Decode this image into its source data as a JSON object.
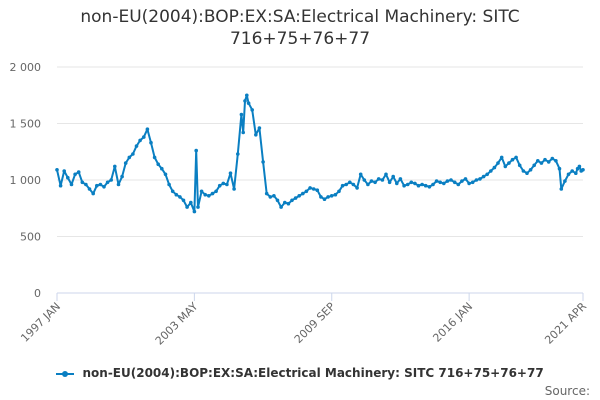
{
  "chart_data": {
    "type": "line",
    "title_lines": [
      "non-EU(2004):BOP:EX:SA:Electrical Machinery: SITC",
      "716+75+76+77"
    ],
    "xlabel": "",
    "ylabel": "",
    "x_tick_labels": [
      "1997 JAN",
      "2003 MAY",
      "2009 SEP",
      "2016 JAN",
      "2021 APR"
    ],
    "y_tick_labels": [
      "0",
      "500",
      "1 000",
      "1 500",
      "2 000"
    ],
    "ylim": [
      0,
      2000
    ],
    "xlim": [
      "1997-01",
      "2021-04"
    ],
    "grid": "horizontal",
    "legend_position": "bottom-center",
    "colors": {
      "series": "#0a7fc2",
      "grid": "#e6e6e6"
    },
    "series": [
      {
        "name": "non-EU(2004):BOP:EX:SA:Electrical Machinery: SITC 716+75+76+77",
        "points": [
          [
            "1997-01",
            1090
          ],
          [
            "1997-03",
            950
          ],
          [
            "1997-05",
            1080
          ],
          [
            "1997-07",
            1020
          ],
          [
            "1997-09",
            960
          ],
          [
            "1997-11",
            1050
          ],
          [
            "1998-01",
            1070
          ],
          [
            "1998-03",
            980
          ],
          [
            "1998-05",
            960
          ],
          [
            "1998-07",
            920
          ],
          [
            "1998-09",
            880
          ],
          [
            "1998-11",
            950
          ],
          [
            "1999-01",
            960
          ],
          [
            "1999-03",
            940
          ],
          [
            "1999-05",
            980
          ],
          [
            "1999-07",
            1000
          ],
          [
            "1999-09",
            1120
          ],
          [
            "1999-11",
            960
          ],
          [
            "2000-01",
            1030
          ],
          [
            "2000-03",
            1150
          ],
          [
            "2000-05",
            1200
          ],
          [
            "2000-07",
            1230
          ],
          [
            "2000-09",
            1300
          ],
          [
            "2000-11",
            1350
          ],
          [
            "2001-01",
            1380
          ],
          [
            "2001-03",
            1450
          ],
          [
            "2001-05",
            1330
          ],
          [
            "2001-07",
            1200
          ],
          [
            "2001-09",
            1140
          ],
          [
            "2001-11",
            1100
          ],
          [
            "2002-01",
            1050
          ],
          [
            "2002-03",
            960
          ],
          [
            "2002-05",
            900
          ],
          [
            "2002-07",
            870
          ],
          [
            "2002-09",
            850
          ],
          [
            "2002-11",
            820
          ],
          [
            "2003-01",
            760
          ],
          [
            "2003-03",
            800
          ],
          [
            "2003-05",
            720
          ],
          [
            "2003-06",
            1260
          ],
          [
            "2003-07",
            760
          ],
          [
            "2003-09",
            900
          ],
          [
            "2003-11",
            870
          ],
          [
            "2004-01",
            860
          ],
          [
            "2004-03",
            880
          ],
          [
            "2004-05",
            900
          ],
          [
            "2004-07",
            950
          ],
          [
            "2004-09",
            970
          ],
          [
            "2004-11",
            960
          ],
          [
            "2005-01",
            1060
          ],
          [
            "2005-03",
            920
          ],
          [
            "2005-05",
            1230
          ],
          [
            "2005-07",
            1580
          ],
          [
            "2005-08",
            1420
          ],
          [
            "2005-09",
            1700
          ],
          [
            "2005-10",
            1750
          ],
          [
            "2005-11",
            1680
          ],
          [
            "2006-01",
            1620
          ],
          [
            "2006-03",
            1400
          ],
          [
            "2006-05",
            1460
          ],
          [
            "2006-07",
            1160
          ],
          [
            "2006-09",
            880
          ],
          [
            "2006-11",
            850
          ],
          [
            "2007-01",
            860
          ],
          [
            "2007-03",
            820
          ],
          [
            "2007-05",
            760
          ],
          [
            "2007-07",
            800
          ],
          [
            "2007-09",
            790
          ],
          [
            "2007-11",
            820
          ],
          [
            "2008-01",
            840
          ],
          [
            "2008-03",
            860
          ],
          [
            "2008-05",
            880
          ],
          [
            "2008-07",
            900
          ],
          [
            "2008-09",
            930
          ],
          [
            "2008-11",
            920
          ],
          [
            "2009-01",
            910
          ],
          [
            "2009-03",
            850
          ],
          [
            "2009-05",
            830
          ],
          [
            "2009-07",
            850
          ],
          [
            "2009-09",
            860
          ],
          [
            "2009-11",
            870
          ],
          [
            "2010-01",
            900
          ],
          [
            "2010-03",
            950
          ],
          [
            "2010-05",
            960
          ],
          [
            "2010-07",
            980
          ],
          [
            "2010-09",
            960
          ],
          [
            "2010-11",
            930
          ],
          [
            "2011-01",
            1050
          ],
          [
            "2011-03",
            1000
          ],
          [
            "2011-05",
            960
          ],
          [
            "2011-07",
            990
          ],
          [
            "2011-09",
            980
          ],
          [
            "2011-11",
            1010
          ],
          [
            "2012-01",
            1000
          ],
          [
            "2012-03",
            1050
          ],
          [
            "2012-05",
            980
          ],
          [
            "2012-07",
            1030
          ],
          [
            "2012-09",
            970
          ],
          [
            "2012-11",
            1010
          ],
          [
            "2013-01",
            950
          ],
          [
            "2013-03",
            960
          ],
          [
            "2013-05",
            980
          ],
          [
            "2013-07",
            970
          ],
          [
            "2013-09",
            950
          ],
          [
            "2013-11",
            960
          ],
          [
            "2014-01",
            950
          ],
          [
            "2014-03",
            940
          ],
          [
            "2014-05",
            960
          ],
          [
            "2014-07",
            990
          ],
          [
            "2014-09",
            980
          ],
          [
            "2014-11",
            970
          ],
          [
            "2015-01",
            990
          ],
          [
            "2015-03",
            1000
          ],
          [
            "2015-05",
            980
          ],
          [
            "2015-07",
            960
          ],
          [
            "2015-09",
            990
          ],
          [
            "2015-11",
            1010
          ],
          [
            "2016-01",
            970
          ],
          [
            "2016-03",
            980
          ],
          [
            "2016-05",
            1000
          ],
          [
            "2016-07",
            1010
          ],
          [
            "2016-09",
            1030
          ],
          [
            "2016-11",
            1050
          ],
          [
            "2017-01",
            1080
          ],
          [
            "2017-03",
            1110
          ],
          [
            "2017-05",
            1150
          ],
          [
            "2017-07",
            1200
          ],
          [
            "2017-09",
            1120
          ],
          [
            "2017-11",
            1150
          ],
          [
            "2018-01",
            1180
          ],
          [
            "2018-03",
            1200
          ],
          [
            "2018-05",
            1130
          ],
          [
            "2018-07",
            1080
          ],
          [
            "2018-09",
            1060
          ],
          [
            "2018-11",
            1090
          ],
          [
            "2019-01",
            1130
          ],
          [
            "2019-03",
            1170
          ],
          [
            "2019-05",
            1150
          ],
          [
            "2019-07",
            1180
          ],
          [
            "2019-09",
            1160
          ],
          [
            "2019-11",
            1190
          ],
          [
            "2020-01",
            1170
          ],
          [
            "2020-03",
            1100
          ],
          [
            "2020-04",
            920
          ],
          [
            "2020-06",
            990
          ],
          [
            "2020-08",
            1050
          ],
          [
            "2020-10",
            1080
          ],
          [
            "2020-12",
            1060
          ],
          [
            "2021-01",
            1100
          ],
          [
            "2021-02",
            1120
          ],
          [
            "2021-03",
            1080
          ],
          [
            "2021-04",
            1090
          ]
        ]
      }
    ]
  },
  "credits": "Source:"
}
